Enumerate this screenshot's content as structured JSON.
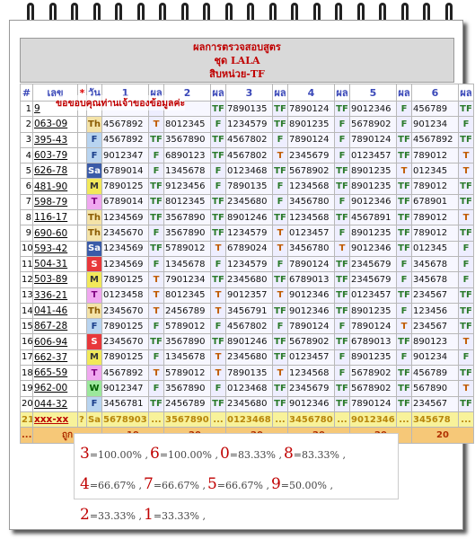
{
  "header": {
    "line1": "ผลการตรวจสอบสูตร",
    "line2": "ชุด LALA",
    "line3": "สิบหน่วย-TF"
  },
  "overlay_text": "ขอขอบคุณท่านเจ้าของข้อมูลค่ะ",
  "columns": [
    "#",
    "เลข",
    "*",
    "วัน",
    "1",
    "ผล",
    "2",
    "ผล",
    "3",
    "ผล",
    "4",
    "ผล",
    "5",
    "ผล",
    "6",
    "ผล"
  ],
  "rows": [
    {
      "no": "1",
      "num": "9",
      "star": "",
      "day": "",
      "sets": [
        "",
        "",
        "7890135",
        "7890124",
        "9012346",
        "456789"
      ],
      "res": [
        "",
        "TF",
        "TF",
        "TF",
        "F",
        "TF"
      ]
    },
    {
      "no": "2",
      "num": "063-09",
      "star": "",
      "day": "Th",
      "sets": [
        "4567892",
        "8012345",
        "1234579",
        "8901235",
        "5678902",
        "901234"
      ],
      "res": [
        "T",
        "F",
        "TF",
        "F",
        "F",
        "F"
      ]
    },
    {
      "no": "3",
      "num": "395-43",
      "star": "",
      "day": "F",
      "sets": [
        "4567892",
        "3567890",
        "4567802",
        "7890124",
        "7890124",
        "4567892"
      ],
      "res": [
        "TF",
        "TF",
        "F",
        "F",
        "TF",
        "TF"
      ]
    },
    {
      "no": "4",
      "num": "603-79",
      "star": "",
      "day": "F",
      "sets": [
        "9012347",
        "6890123",
        "4567802",
        "2345679",
        "0123457",
        "789012"
      ],
      "res": [
        "F",
        "TF",
        "T",
        "F",
        "TF",
        "T"
      ]
    },
    {
      "no": "5",
      "num": "626-78",
      "star": "",
      "day": "Sa",
      "sets": [
        "6789014",
        "1345678",
        "0123468",
        "5678902",
        "8901235",
        "012345"
      ],
      "res": [
        "F",
        "F",
        "TF",
        "TF",
        "T",
        "T"
      ]
    },
    {
      "no": "6",
      "num": "481-90",
      "star": "",
      "day": "M",
      "sets": [
        "7890125",
        "9123456",
        "7890135",
        "1234568",
        "8901235",
        "789012"
      ],
      "res": [
        "TF",
        "F",
        "F",
        "TF",
        "TF",
        "TF"
      ]
    },
    {
      "no": "7",
      "num": "598-79",
      "star": "",
      "day": "T",
      "sets": [
        "6789014",
        "8012345",
        "2345680",
        "3456780",
        "9012346",
        "678901"
      ],
      "res": [
        "TF",
        "TF",
        "F",
        "F",
        "TF",
        "TF"
      ]
    },
    {
      "no": "8",
      "num": "116-17",
      "star": "",
      "day": "Th",
      "sets": [
        "1234569",
        "3567890",
        "8901246",
        "1234568",
        "4567891",
        "789012"
      ],
      "res": [
        "TF",
        "TF",
        "TF",
        "TF",
        "TF",
        "T"
      ]
    },
    {
      "no": "9",
      "num": "690-60",
      "star": "",
      "day": "Th",
      "sets": [
        "2345670",
        "3567890",
        "1234579",
        "0123457",
        "8901235",
        "789012"
      ],
      "res": [
        "F",
        "TF",
        "T",
        "F",
        "TF",
        "TF"
      ]
    },
    {
      "no": "10",
      "num": "593-42",
      "star": "",
      "day": "Sa",
      "sets": [
        "1234569",
        "5789012",
        "6789024",
        "3456780",
        "9012346",
        "012345"
      ],
      "res": [
        "TF",
        "T",
        "T",
        "T",
        "TF",
        "F"
      ]
    },
    {
      "no": "11",
      "num": "504-31",
      "star": "",
      "day": "S",
      "sets": [
        "1234569",
        "1345678",
        "1234579",
        "7890124",
        "2345679",
        "345678"
      ],
      "res": [
        "F",
        "F",
        "F",
        "TF",
        "F",
        "F"
      ]
    },
    {
      "no": "12",
      "num": "503-89",
      "star": "",
      "day": "M",
      "sets": [
        "7890125",
        "7901234",
        "2345680",
        "6789013",
        "2345679",
        "345678"
      ],
      "res": [
        "T",
        "TF",
        "TF",
        "TF",
        "F",
        "F"
      ]
    },
    {
      "no": "13",
      "num": "336-21",
      "star": "",
      "day": "T",
      "sets": [
        "0123458",
        "8012345",
        "9012357",
        "9012346",
        "0123457",
        "234567"
      ],
      "res": [
        "T",
        "T",
        "T",
        "TF",
        "TF",
        "TF"
      ]
    },
    {
      "no": "14",
      "num": "041-46",
      "star": "",
      "day": "Th",
      "sets": [
        "2345670",
        "2456789",
        "3456791",
        "9012346",
        "8901235",
        "123456"
      ],
      "res": [
        "T",
        "T",
        "TF",
        "TF",
        "F",
        "TF"
      ]
    },
    {
      "no": "15",
      "num": "867-28",
      "star": "",
      "day": "F",
      "sets": [
        "7890125",
        "5789012",
        "4567802",
        "7890124",
        "7890124",
        "234567"
      ],
      "res": [
        "F",
        "F",
        "F",
        "F",
        "T",
        "TF"
      ]
    },
    {
      "no": "16",
      "num": "606-94",
      "star": "",
      "day": "S",
      "sets": [
        "2345670",
        "3567890",
        "8901246",
        "5678902",
        "6789013",
        "890123"
      ],
      "res": [
        "TF",
        "TF",
        "TF",
        "TF",
        "TF",
        "T"
      ]
    },
    {
      "no": "17",
      "num": "662-37",
      "star": "",
      "day": "M",
      "sets": [
        "7890125",
        "1345678",
        "2345680",
        "0123457",
        "8901235",
        "901234"
      ],
      "res": [
        "F",
        "T",
        "TF",
        "F",
        "F",
        "F"
      ]
    },
    {
      "no": "18",
      "num": "665-59",
      "star": "",
      "day": "T",
      "sets": [
        "4567892",
        "5789012",
        "7890135",
        "1234568",
        "5678902",
        "456789"
      ],
      "res": [
        "T",
        "T",
        "T",
        "F",
        "TF",
        "TF"
      ]
    },
    {
      "no": "19",
      "num": "962-00",
      "star": "",
      "day": "W",
      "sets": [
        "9012347",
        "3567890",
        "0123468",
        "2345679",
        "5678902",
        "567890"
      ],
      "res": [
        "F",
        "F",
        "TF",
        "TF",
        "TF",
        "T"
      ]
    },
    {
      "no": "20",
      "num": "044-32",
      "star": "",
      "day": "F",
      "sets": [
        "3456781",
        "2456789",
        "2345680",
        "9012346",
        "7890124",
        "234567"
      ],
      "res": [
        "TF",
        "TF",
        "TF",
        "TF",
        "TF",
        "TF"
      ]
    }
  ],
  "summary_row": {
    "no": "21",
    "num": "xxx-xx",
    "star": "?",
    "day": "Sa",
    "sets": [
      "5678903",
      "3567890",
      "0123468",
      "3456780",
      "9012346",
      "345678"
    ],
    "res": [
      "...",
      "...",
      "...",
      "...",
      "...",
      "..."
    ]
  },
  "count_row": {
    "no": "...",
    "label": "ถูก",
    "counts": [
      "19",
      "20",
      "20",
      "20",
      "20",
      "20"
    ]
  },
  "stats": [
    {
      "digit": "3",
      "pct": "=100.00% ,"
    },
    {
      "digit": "6",
      "pct": "=100.00% ,"
    },
    {
      "digit": "0",
      "pct": "=83.33% ,"
    },
    {
      "digit": "8",
      "pct": "=83.33% ,"
    },
    {
      "digit": "4",
      "pct": "=66.67% ,"
    },
    {
      "digit": "7",
      "pct": "=66.67% ,"
    },
    {
      "digit": "5",
      "pct": "=66.67% ,"
    },
    {
      "digit": "9",
      "pct": "=50.00% ,"
    },
    {
      "digit": "2",
      "pct": "=33.33% ,"
    },
    {
      "digit": "1",
      "pct": "=33.33% ,"
    }
  ],
  "colors": {
    "header_text": "#c00000",
    "column_header": "#3a48b8",
    "summary_bg": "#f8f29a",
    "count_bg": "#f6c878"
  }
}
